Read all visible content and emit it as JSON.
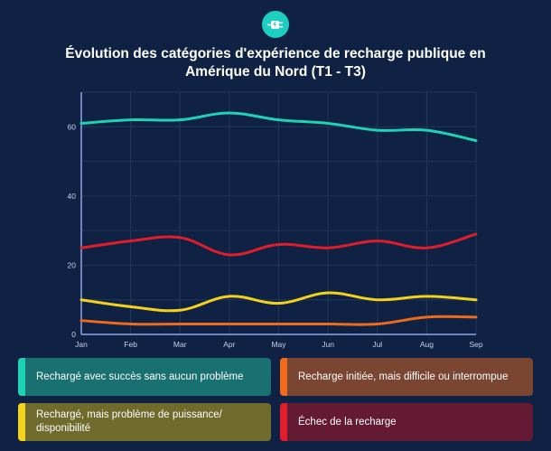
{
  "logo_icon": "ev-plug-icon",
  "chart_data": {
    "type": "line",
    "title": "Évolution des catégories d'expérience de recharge publique en Amérique du Nord (T1 - T3)",
    "categories": [
      "Jan",
      "Feb",
      "Mar",
      "Apr",
      "May",
      "Jun",
      "Jul",
      "Aug",
      "Sep"
    ],
    "y_ticks": [
      "0",
      "20",
      "40",
      "60"
    ],
    "ylim": [
      0,
      70
    ],
    "grid": true,
    "legend_position": "bottom",
    "series": [
      {
        "name": "Rechargé avec succès sans aucun problème",
        "color": "#1fd1b5",
        "values": [
          61,
          62,
          62,
          64,
          62,
          61,
          59,
          59,
          56
        ]
      },
      {
        "name": "Recharge initiée, mais difficile ou interrompue",
        "color": "#ee6a1d",
        "values": [
          4,
          3,
          3,
          3,
          3,
          3,
          3,
          5,
          5
        ]
      },
      {
        "name": "Rechargé, mais problème de puissance/ disponibilité",
        "color": "#f3d21d",
        "values": [
          10,
          8,
          7,
          11,
          9,
          12,
          10,
          11,
          10
        ]
      },
      {
        "name": "Échec de la recharge",
        "color": "#e01e2b",
        "values": [
          25,
          27,
          28,
          23,
          26,
          25,
          27,
          25,
          29
        ]
      }
    ]
  },
  "legend_colors": {
    "bg": [
      "#197070",
      "#7a4531",
      "#6f6b2d",
      "#651a33"
    ]
  }
}
